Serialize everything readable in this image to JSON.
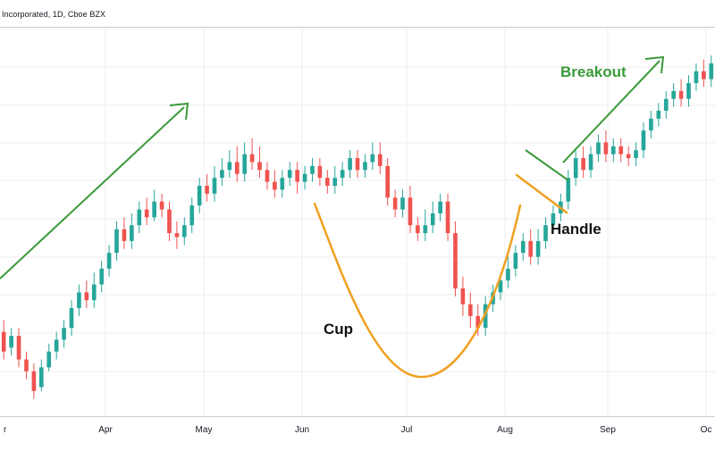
{
  "header": {
    "symbol_text": "Incorporated, 1D, Cboe BZX"
  },
  "colors": {
    "up": "#26a69a",
    "down": "#ef5350",
    "trend": "#3a9a3a",
    "cup": "#f0a020",
    "grid": "#eceef2",
    "axis_text": "#131722"
  },
  "annotations": {
    "cup_label": "Cup",
    "handle_label": "Handle",
    "breakout_label": "Breakout"
  },
  "chart_data": {
    "type": "candlestick",
    "grid": true,
    "x_ticks": [
      "r",
      "Apr",
      "May",
      "Jun",
      "Jul",
      "Aug",
      "Sep",
      "Oc"
    ],
    "candles": [
      [
        110,
        100,
        116,
        96
      ],
      [
        102,
        108,
        112,
        98
      ],
      [
        108,
        96,
        112,
        92
      ],
      [
        96,
        90,
        100,
        86
      ],
      [
        90,
        80,
        94,
        76
      ],
      [
        82,
        92,
        96,
        80
      ],
      [
        92,
        100,
        104,
        90
      ],
      [
        100,
        106,
        110,
        96
      ],
      [
        106,
        112,
        116,
        102
      ],
      [
        112,
        122,
        126,
        108
      ],
      [
        122,
        130,
        134,
        118
      ],
      [
        130,
        126,
        136,
        122
      ],
      [
        126,
        134,
        140,
        122
      ],
      [
        134,
        142,
        146,
        130
      ],
      [
        142,
        150,
        154,
        138
      ],
      [
        150,
        162,
        166,
        146
      ],
      [
        162,
        156,
        168,
        152
      ],
      [
        156,
        164,
        170,
        152
      ],
      [
        164,
        172,
        176,
        160
      ],
      [
        172,
        168,
        178,
        164
      ],
      [
        168,
        176,
        182,
        166
      ],
      [
        176,
        172,
        180,
        168
      ],
      [
        172,
        160,
        176,
        156
      ],
      [
        160,
        158,
        166,
        152
      ],
      [
        158,
        164,
        168,
        154
      ],
      [
        164,
        174,
        178,
        160
      ],
      [
        174,
        184,
        188,
        170
      ],
      [
        184,
        180,
        190,
        176
      ],
      [
        180,
        188,
        194,
        176
      ],
      [
        188,
        192,
        198,
        184
      ],
      [
        192,
        196,
        202,
        188
      ],
      [
        196,
        190,
        204,
        186
      ],
      [
        190,
        200,
        206,
        186
      ],
      [
        200,
        196,
        208,
        192
      ],
      [
        196,
        192,
        204,
        188
      ],
      [
        192,
        186,
        196,
        182
      ],
      [
        186,
        182,
        192,
        178
      ],
      [
        182,
        188,
        192,
        178
      ],
      [
        188,
        192,
        196,
        184
      ],
      [
        192,
        186,
        196,
        180
      ],
      [
        186,
        190,
        194,
        182
      ],
      [
        190,
        194,
        198,
        186
      ],
      [
        194,
        188,
        198,
        184
      ],
      [
        188,
        184,
        192,
        180
      ],
      [
        184,
        188,
        194,
        180
      ],
      [
        188,
        192,
        196,
        184
      ],
      [
        192,
        198,
        202,
        188
      ],
      [
        198,
        192,
        202,
        188
      ],
      [
        192,
        196,
        200,
        188
      ],
      [
        196,
        200,
        206,
        192
      ],
      [
        200,
        194,
        206,
        190
      ],
      [
        194,
        178,
        198,
        174
      ],
      [
        178,
        172,
        182,
        168
      ],
      [
        172,
        178,
        182,
        168
      ],
      [
        178,
        164,
        184,
        160
      ],
      [
        164,
        160,
        168,
        156
      ],
      [
        160,
        164,
        172,
        156
      ],
      [
        164,
        170,
        176,
        160
      ],
      [
        170,
        176,
        180,
        166
      ],
      [
        176,
        160,
        180,
        156
      ],
      [
        160,
        132,
        166,
        128
      ],
      [
        132,
        124,
        138,
        118
      ],
      [
        124,
        118,
        130,
        112
      ],
      [
        118,
        112,
        124,
        108
      ],
      [
        112,
        124,
        128,
        108
      ],
      [
        124,
        130,
        134,
        120
      ],
      [
        130,
        136,
        140,
        126
      ],
      [
        136,
        142,
        148,
        132
      ],
      [
        142,
        150,
        154,
        138
      ],
      [
        150,
        156,
        160,
        146
      ],
      [
        156,
        148,
        162,
        144
      ],
      [
        148,
        156,
        162,
        144
      ],
      [
        156,
        164,
        168,
        152
      ],
      [
        164,
        170,
        174,
        160
      ],
      [
        170,
        176,
        180,
        166
      ],
      [
        176,
        188,
        192,
        172
      ],
      [
        188,
        198,
        202,
        184
      ],
      [
        198,
        192,
        204,
        188
      ],
      [
        192,
        200,
        204,
        188
      ],
      [
        200,
        206,
        210,
        196
      ],
      [
        206,
        200,
        212,
        196
      ],
      [
        200,
        204,
        208,
        196
      ],
      [
        204,
        200,
        208,
        196
      ],
      [
        200,
        198,
        204,
        194
      ],
      [
        198,
        202,
        206,
        194
      ],
      [
        202,
        212,
        216,
        198
      ],
      [
        212,
        218,
        222,
        208
      ],
      [
        218,
        222,
        226,
        214
      ],
      [
        222,
        228,
        232,
        218
      ],
      [
        228,
        232,
        236,
        224
      ],
      [
        232,
        228,
        238,
        224
      ],
      [
        228,
        236,
        240,
        224
      ],
      [
        236,
        242,
        246,
        232
      ],
      [
        242,
        238,
        248,
        234
      ],
      [
        238,
        246,
        250,
        234
      ]
    ]
  }
}
